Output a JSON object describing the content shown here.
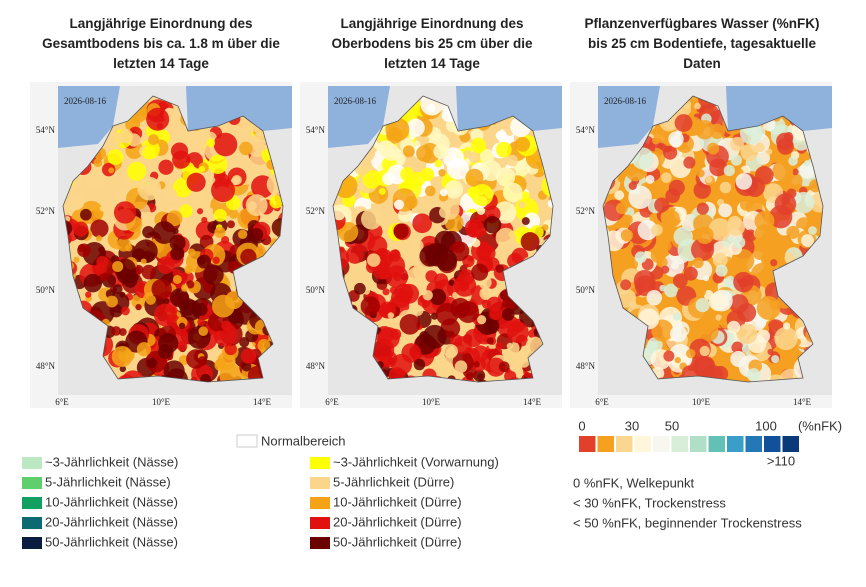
{
  "panels": [
    {
      "title": "Langjährige Einordnung des Gesamtbodens bis ca. 1.8 m über die letzten 14 Tage",
      "date": "2026-08-16",
      "lat_labels": [
        "54°N",
        "52°N",
        "50°N",
        "48°N"
      ],
      "lon_labels": [
        "6°E",
        "10°E",
        "14°E"
      ]
    },
    {
      "title": "Langjährige Einordnung des Oberbodens bis 25 cm über die letzten 14 Tage",
      "date": "2026-08-16",
      "lat_labels": [
        "54°N",
        "52°N",
        "50°N",
        "48°N"
      ],
      "lon_labels": [
        "6°E",
        "10°E",
        "14°E"
      ]
    },
    {
      "title": "Pflanzenverfügbares Wasser (%nFK) bis 25 cm Bodentiefe, tagesaktuelle Daten",
      "date": "2026-08-16",
      "lat_labels": [
        "54°N",
        "52°N",
        "50°N",
        "48°N"
      ],
      "lon_labels": [
        "6°E",
        "10°E",
        "14°E"
      ]
    }
  ],
  "legend": {
    "normal": "Normalbereich",
    "wet": [
      {
        "label": "~3-Jährlichkeit (Nässe)",
        "color": "#bde8c4"
      },
      {
        "label": "5-Jährlichkeit (Nässe)",
        "color": "#5fcf6e"
      },
      {
        "label": "10-Jährlichkeit (Nässe)",
        "color": "#12a061"
      },
      {
        "label": "20-Jährlichkeit (Nässe)",
        "color": "#0d6a72"
      },
      {
        "label": "50-Jährlichkeit (Nässe)",
        "color": "#0a1d40"
      }
    ],
    "dry": [
      {
        "label": "~3-Jährlichkeit (Vorwarnung)",
        "color": "#ffff00"
      },
      {
        "label": "5-Jährlichkeit (Dürre)",
        "color": "#fbd68a"
      },
      {
        "label": "10-Jährlichkeit (Dürre)",
        "color": "#f5a316"
      },
      {
        "label": "20-Jährlichkeit (Dürre)",
        "color": "#e0110e"
      },
      {
        "label": "50-Jährlichkeit (Dürre)",
        "color": "#6b0000"
      }
    ]
  },
  "nfk_legend": {
    "ticks": [
      "0",
      "30",
      "50",
      "100"
    ],
    "unit": "(%nFK)",
    "max_label": ">110",
    "colors": [
      "#e2402b",
      "#f5a021",
      "#fbd68e",
      "#fff6dc",
      "#f7f7f0",
      "#d9eed9",
      "#b0dfc8",
      "#62c0b5",
      "#3a9fc8",
      "#2478b8",
      "#10519a",
      "#0b3a78"
    ],
    "notes": [
      "0 %nFK, Welkepunkt",
      "< 30 %nFK, Trockenstress",
      "< 50 %nFK, beginnender Trockenstress"
    ]
  }
}
